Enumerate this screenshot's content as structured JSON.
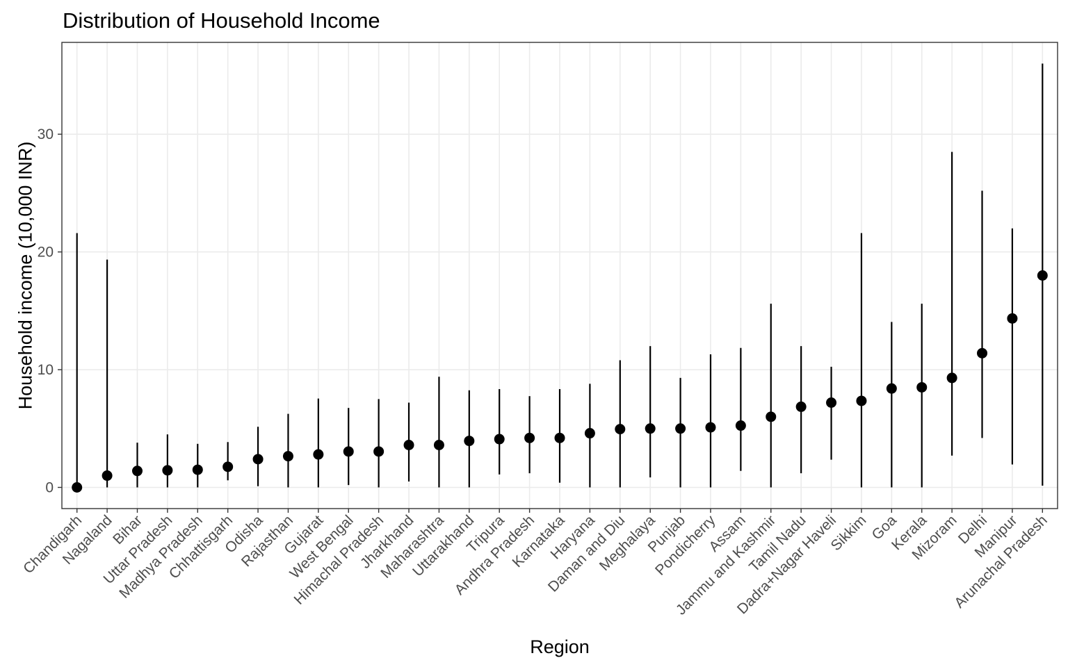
{
  "chart_data": {
    "type": "pointrange",
    "title": "Distribution of Household Income",
    "xlabel": "Region",
    "ylabel": "Household income (10,000 INR)",
    "ylim": [
      -1.8,
      37.8
    ],
    "yticks": [
      0,
      10,
      20,
      30
    ],
    "grid": true,
    "legend": "none",
    "categories": [
      "Chandigarh",
      "Nagaland",
      "Bihar",
      "Uttar Pradesh",
      "Madhya Pradesh",
      "Chhattisgarh",
      "Odisha",
      "Rajasthan",
      "Gujarat",
      "West Bengal",
      "Himachal Pradesh",
      "Jharkhand",
      "Maharashtra",
      "Uttarakhand",
      "Tripura",
      "Andhra Pradesh",
      "Karnataka",
      "Haryana",
      "Daman and Diu",
      "Meghalaya",
      "Punjab",
      "Pondicherry",
      "Assam",
      "Jammu and Kashmir",
      "Tamil Nadu",
      "Dadra+Nagar Haveli",
      "Sikkim",
      "Goa",
      "Kerala",
      "Mizoram",
      "Delhi",
      "Manipur",
      "Arunachal Pradesh"
    ],
    "values": [
      0.0,
      1.0,
      1.4,
      1.45,
      1.5,
      1.75,
      2.4,
      2.65,
      2.8,
      3.05,
      3.05,
      3.6,
      3.6,
      3.95,
      4.1,
      4.2,
      4.2,
      4.6,
      4.95,
      5.0,
      5.0,
      5.1,
      5.25,
      6.0,
      6.85,
      7.2,
      7.35,
      8.4,
      8.5,
      9.3,
      11.4,
      14.35,
      18.0
    ],
    "lower": [
      0.0,
      0.0,
      0.0,
      0.0,
      0.0,
      0.6,
      0.1,
      0.0,
      0.0,
      0.2,
      0.0,
      0.5,
      0.0,
      0.0,
      1.1,
      1.2,
      0.4,
      0.0,
      0.0,
      0.85,
      0.0,
      0.0,
      1.4,
      0.0,
      1.2,
      2.35,
      0.0,
      0.0,
      0.0,
      2.7,
      4.2,
      1.95,
      0.15
    ],
    "upper": [
      21.6,
      19.35,
      3.8,
      4.5,
      3.7,
      3.85,
      5.15,
      6.25,
      7.55,
      6.75,
      7.5,
      7.2,
      9.4,
      8.25,
      8.35,
      7.75,
      8.35,
      8.8,
      10.8,
      12.0,
      9.3,
      11.3,
      11.85,
      15.6,
      12.0,
      10.25,
      21.6,
      14.05,
      15.6,
      28.5,
      25.2,
      22.0,
      36.0
    ]
  }
}
